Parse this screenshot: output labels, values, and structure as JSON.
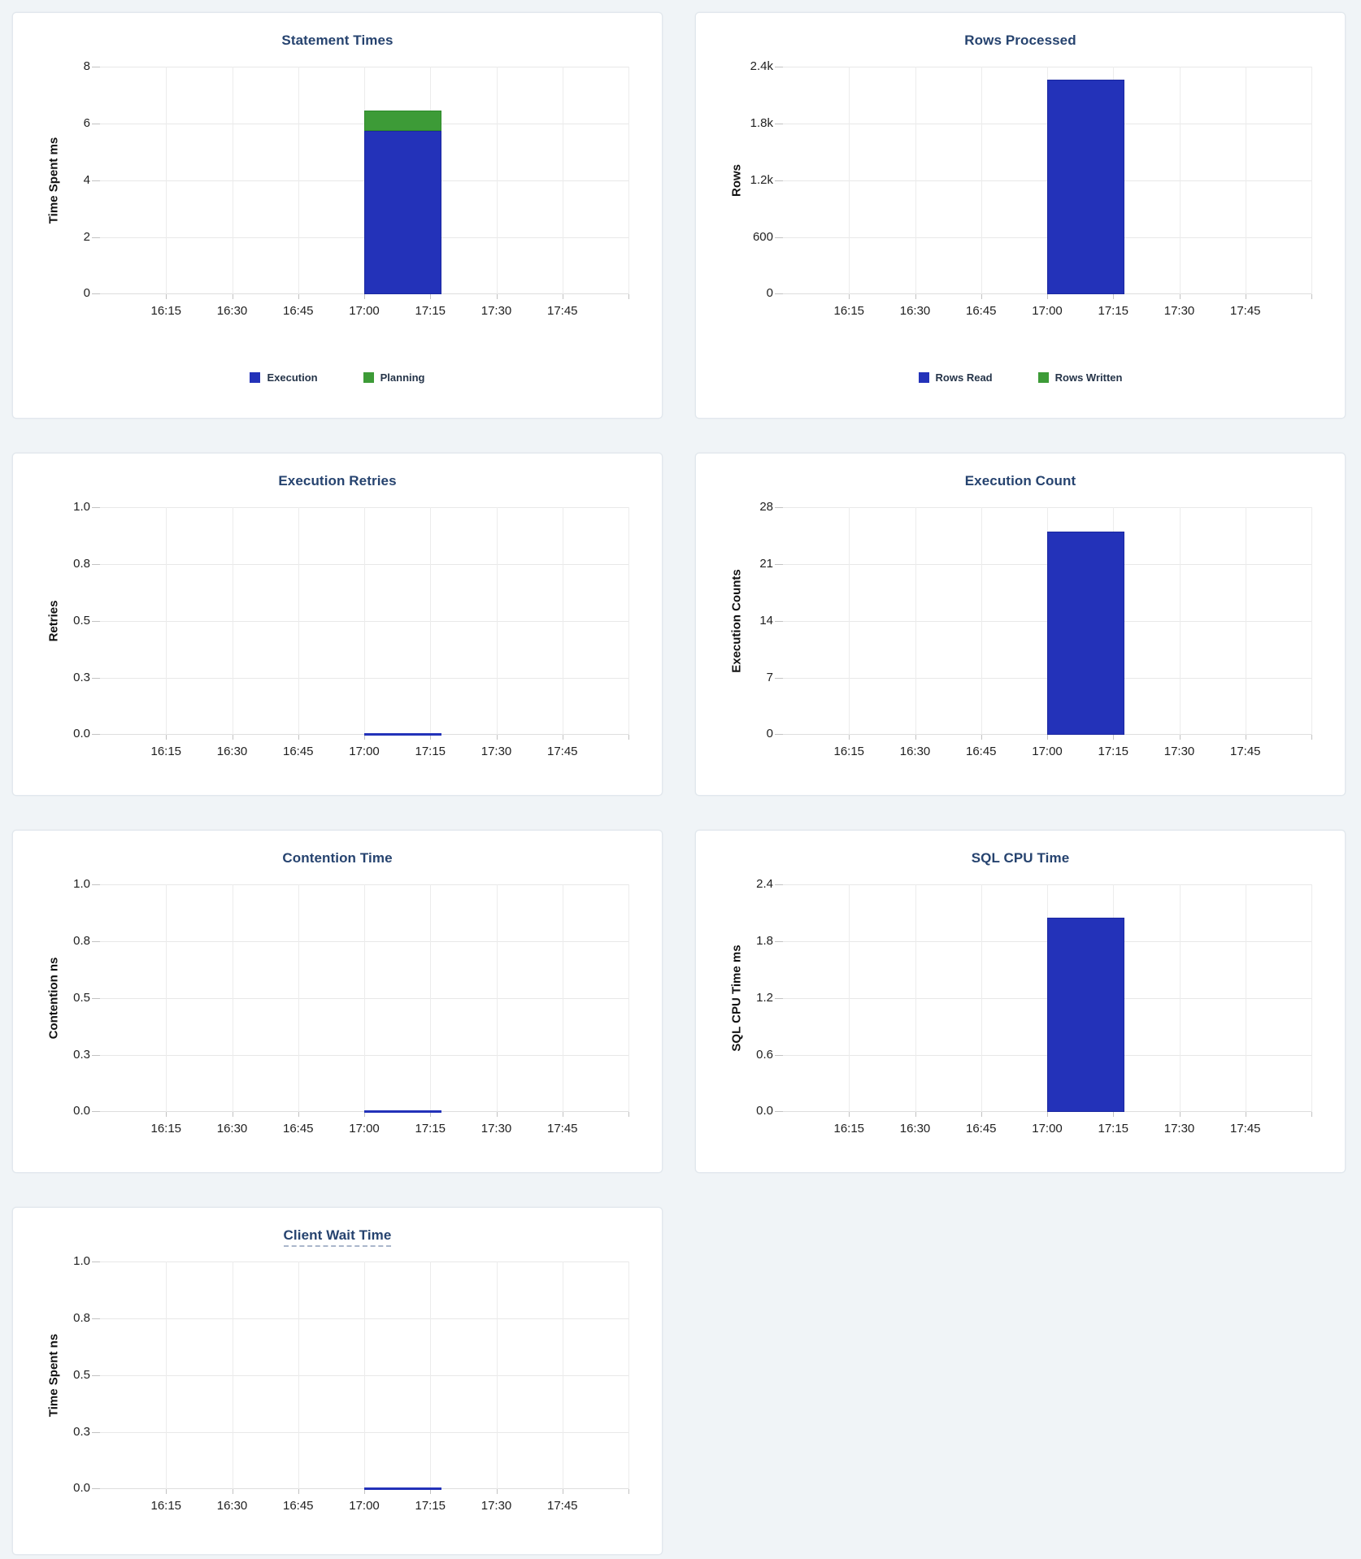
{
  "colors": {
    "series_blue": "#2332b9",
    "series_blue_stroke": "#1b28a0",
    "series_green": "#3d9b37",
    "series_green_stroke": "#2e8a2a",
    "title_text": "#26436f",
    "page_background": "#f0f4f7",
    "panel_background": "#ffffff"
  },
  "chart_data": [
    {
      "type": "bar",
      "title": "Statement Times",
      "title_tooltip": false,
      "ylabel": "Time Spent ms",
      "xlabel": "",
      "ylim": [
        0,
        8
      ],
      "ytick_labels": [
        "0",
        "2",
        "4",
        "6",
        "8"
      ],
      "x_tick_labels": [
        "16:15",
        "16:30",
        "16:45",
        "17:00",
        "17:15",
        "17:30",
        "17:45"
      ],
      "grid": true,
      "stacked": true,
      "legend_position": "bottom",
      "show_zero_marker": false,
      "series": [
        {
          "name": "Execution",
          "x": "17:00",
          "value": 5.75,
          "color": "#2332b9",
          "stroke": "#1b28a0"
        },
        {
          "name": "Planning",
          "x": "17:00",
          "value": 0.7,
          "color": "#3d9b37",
          "stroke": "#2e8a2a"
        }
      ]
    },
    {
      "type": "bar",
      "title": "Rows Processed",
      "title_tooltip": false,
      "ylabel": "Rows",
      "xlabel": "",
      "ylim": [
        0,
        2400
      ],
      "ytick_labels": [
        "0",
        "600",
        "1.2k",
        "1.8k",
        "2.4k"
      ],
      "x_tick_labels": [
        "16:15",
        "16:30",
        "16:45",
        "17:00",
        "17:15",
        "17:30",
        "17:45"
      ],
      "grid": true,
      "stacked": true,
      "legend_position": "bottom",
      "show_zero_marker": false,
      "series": [
        {
          "name": "Rows Read",
          "x": "17:00",
          "value": 2260,
          "color": "#2332b9",
          "stroke": "#1b28a0"
        },
        {
          "name": "Rows Written",
          "x": "17:00",
          "value": 0,
          "color": "#3d9b37",
          "stroke": "#2e8a2a"
        }
      ]
    },
    {
      "type": "bar",
      "title": "Execution Retries",
      "title_tooltip": false,
      "ylabel": "Retries",
      "xlabel": "",
      "ylim": [
        0,
        1
      ],
      "ytick_labels": [
        "0.0",
        "0.3",
        "0.5",
        "0.8",
        "1.0"
      ],
      "x_tick_labels": [
        "16:15",
        "16:30",
        "16:45",
        "17:00",
        "17:15",
        "17:30",
        "17:45"
      ],
      "grid": true,
      "stacked": false,
      "legend_position": null,
      "show_zero_marker": true,
      "series": [
        {
          "name": "Retries",
          "x": "17:00",
          "value": 0,
          "color": "#2332b9",
          "stroke": "#1b28a0"
        }
      ]
    },
    {
      "type": "bar",
      "title": "Execution Count",
      "title_tooltip": false,
      "ylabel": "Execution Counts",
      "xlabel": "",
      "ylim": [
        0,
        28
      ],
      "ytick_labels": [
        "0",
        "7",
        "14",
        "21",
        "28"
      ],
      "x_tick_labels": [
        "16:15",
        "16:30",
        "16:45",
        "17:00",
        "17:15",
        "17:30",
        "17:45"
      ],
      "grid": true,
      "stacked": false,
      "legend_position": null,
      "show_zero_marker": false,
      "series": [
        {
          "name": "Execution Count",
          "x": "17:00",
          "value": 25,
          "color": "#2332b9",
          "stroke": "#1b28a0"
        }
      ]
    },
    {
      "type": "bar",
      "title": "Contention Time",
      "title_tooltip": false,
      "ylabel": "Contention ns",
      "xlabel": "",
      "ylim": [
        0,
        1
      ],
      "ytick_labels": [
        "0.0",
        "0.3",
        "0.5",
        "0.8",
        "1.0"
      ],
      "x_tick_labels": [
        "16:15",
        "16:30",
        "16:45",
        "17:00",
        "17:15",
        "17:30",
        "17:45"
      ],
      "grid": true,
      "stacked": false,
      "legend_position": null,
      "show_zero_marker": true,
      "series": [
        {
          "name": "Contention Time",
          "x": "17:00",
          "value": 0,
          "color": "#2332b9",
          "stroke": "#1b28a0"
        }
      ]
    },
    {
      "type": "bar",
      "title": "SQL CPU Time",
      "title_tooltip": false,
      "ylabel": "SQL CPU Time ms",
      "xlabel": "",
      "ylim": [
        0,
        2.4
      ],
      "ytick_labels": [
        "0.0",
        "0.6",
        "1.2",
        "1.8",
        "2.4"
      ],
      "x_tick_labels": [
        "16:15",
        "16:30",
        "16:45",
        "17:00",
        "17:15",
        "17:30",
        "17:45"
      ],
      "grid": true,
      "stacked": false,
      "legend_position": null,
      "show_zero_marker": false,
      "series": [
        {
          "name": "SQL CPU Time",
          "x": "17:00",
          "value": 2.05,
          "color": "#2332b9",
          "stroke": "#1b28a0"
        }
      ]
    },
    {
      "type": "bar",
      "title": "Client Wait Time",
      "title_tooltip": true,
      "ylabel": "Time Spent ns",
      "xlabel": "",
      "ylim": [
        0,
        1
      ],
      "ytick_labels": [
        "0.0",
        "0.3",
        "0.5",
        "0.8",
        "1.0"
      ],
      "x_tick_labels": [
        "16:15",
        "16:30",
        "16:45",
        "17:00",
        "17:15",
        "17:30",
        "17:45"
      ],
      "grid": true,
      "stacked": false,
      "legend_position": null,
      "show_zero_marker": true,
      "series": [
        {
          "name": "Client Wait Time",
          "x": "17:00",
          "value": 0,
          "color": "#2332b9",
          "stroke": "#1b28a0"
        }
      ]
    }
  ]
}
